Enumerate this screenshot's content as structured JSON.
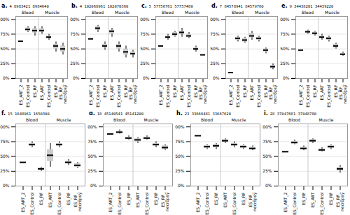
{
  "chart_data": [
    {
      "type": "box",
      "title": "a.",
      "subtitle": "4_8983421_8984640",
      "series": [
        {
          "name": "Blood",
          "categories": [
            "ES_ART_2",
            "ES_Control",
            "ES_RF"
          ],
          "values": [
            [
              63
            ],
            [
              78,
              80,
              82,
              84,
              86,
              88
            ],
            [
              72,
              75,
              78,
              80,
              82,
              84,
              86,
              88
            ]
          ]
        },
        {
          "name": "Muscle",
          "categories": [
            "ES_ART",
            "ES_Control",
            "ES_RF",
            "ES_RF_\nnecropsy"
          ],
          "values": [
            [
              75,
              78,
              80,
              82,
              85,
              88
            ],
            [
              65,
              68,
              70,
              72,
              75
            ],
            [
              45,
              50,
              55,
              58,
              62
            ],
            [
              40,
              45,
              50,
              55,
              60
            ]
          ]
        }
      ],
      "ylim": [
        0,
        105
      ],
      "yticks": [
        {
          "value": 0,
          "label": "0%"
        },
        {
          "value": 25,
          "label": "25%"
        },
        {
          "value": 50,
          "label": "50%"
        },
        {
          "value": 75,
          "label": "75%"
        },
        {
          "value": 100,
          "label": "100%"
        }
      ],
      "grid": true
    },
    {
      "type": "box",
      "title": "b.",
      "subtitle": "4_102068961_102070360",
      "series": [
        {
          "name": "Blood",
          "categories": [
            "ES_ART_2",
            "ES_Control",
            "ES_RF"
          ],
          "values": [
            [
              67
            ],
            [
              78,
              82,
              85,
              88,
              90
            ],
            [
              48,
              52,
              55,
              58,
              62
            ]
          ]
        },
        {
          "name": "Muscle",
          "categories": [
            "ES_ART",
            "ES_Control",
            "ES_RF",
            "ES_RF_\nnecropsy"
          ],
          "values": [
            [
              70,
              75,
              80,
              82,
              85
            ],
            [
              45,
              50,
              55,
              58,
              62
            ],
            [
              35,
              40,
              45,
              50,
              55
            ],
            [
              35,
              40,
              42,
              45,
              48
            ]
          ]
        }
      ],
      "ylim": [
        0,
        105
      ],
      "yticks": [
        {
          "value": 0,
          "label": "0%"
        },
        {
          "value": 25,
          "label": "25%"
        },
        {
          "value": 50,
          "label": "50%"
        },
        {
          "value": 75,
          "label": "75%"
        },
        {
          "value": 100,
          "label": "100%"
        }
      ],
      "grid": true
    },
    {
      "type": "box",
      "title": "c.",
      "subtitle": "5_57756761_57757480",
      "series": [
        {
          "name": "Blood",
          "categories": [
            "ES_ART_2",
            "ES_Control",
            "ES_RF"
          ],
          "values": [
            [
              55
            ],
            [
              65,
              68,
              70,
              72,
              75
            ],
            [
              70,
              72,
              75,
              78,
              80
            ]
          ]
        },
        {
          "name": "Muscle",
          "categories": [
            "ES_ART",
            "ES_Control",
            "ES_RF",
            "ES_RF_\nnecropsy"
          ],
          "values": [
            [
              70,
              75,
              78,
              80,
              85
            ],
            [
              68,
              70,
              72,
              75,
              78
            ],
            [
              45,
              48,
              50,
              52,
              55
            ],
            [
              40
            ]
          ]
        }
      ],
      "ylim": [
        0,
        105
      ],
      "yticks": [
        {
          "value": 0,
          "label": "0%"
        },
        {
          "value": 25,
          "label": "25%"
        },
        {
          "value": 50,
          "label": "50%"
        },
        {
          "value": 75,
          "label": "75%"
        },
        {
          "value": 100,
          "label": "100%"
        }
      ],
      "grid": true
    },
    {
      "type": "box",
      "title": "d.",
      "subtitle": "7_84578941_84579760",
      "series": [
        {
          "name": "Blood",
          "categories": [
            "ES_ART_2",
            "ES_Control",
            "ES_RF"
          ],
          "values": [
            [
              10
            ],
            [
              62,
              65,
              68,
              70,
              72
            ],
            [
              60,
              62,
              65,
              68,
              70
            ]
          ]
        },
        {
          "name": "Muscle",
          "categories": [
            "ES_ART",
            "ES_Control",
            "ES_RF",
            "ES_RF_\nnecropsy"
          ],
          "values": [
            [
              65,
              68,
              70,
              72,
              75,
              78,
              80
            ],
            [
              62,
              65,
              68,
              70,
              72
            ],
            [
              42,
              45,
              48,
              50,
              52
            ],
            [
              15,
              18,
              20,
              22,
              25
            ]
          ]
        }
      ],
      "ylim": [
        0,
        105
      ],
      "yticks": [
        {
          "value": 0,
          "label": "0%"
        },
        {
          "value": 25,
          "label": "25%"
        },
        {
          "value": 50,
          "label": "50%"
        },
        {
          "value": 75,
          "label": "75%"
        },
        {
          "value": 100,
          "label": "100%"
        }
      ],
      "grid": true
    },
    {
      "type": "box",
      "title": "e.",
      "subtitle": "9_34438201_34439220",
      "series": [
        {
          "name": "Blood",
          "categories": [
            "ES_ART_2",
            "ES_Control",
            "ES_RF"
          ],
          "values": [
            [
              48
            ],
            [
              75,
              78,
              80,
              82
            ],
            [
              72,
              75,
              78,
              80
            ]
          ]
        },
        {
          "name": "Muscle",
          "categories": [
            "ES_ART",
            "ES_Control",
            "ES_RF",
            "ES_RF_\nnecropsy"
          ],
          "values": [
            [
              65,
              68,
              70,
              72,
              75
            ],
            [
              62,
              65,
              68,
              70,
              72
            ],
            [
              50,
              52,
              55,
              58,
              60
            ],
            [
              38,
              40,
              42,
              45
            ]
          ]
        }
      ],
      "ylim": [
        0,
        105
      ],
      "yticks": [
        {
          "value": 0,
          "label": "0%"
        },
        {
          "value": 25,
          "label": "25%"
        },
        {
          "value": 50,
          "label": "50%"
        },
        {
          "value": 75,
          "label": "75%"
        },
        {
          "value": 100,
          "label": "100%"
        }
      ],
      "grid": true
    },
    {
      "type": "box",
      "title": "f.",
      "subtitle": "15_1648961_1650300",
      "series": [
        {
          "name": "Blood",
          "categories": [
            "ES_ART_2",
            "ES_Control",
            "ES_RF"
          ],
          "values": [
            [
              40
            ],
            [
              65,
              68,
              70,
              72,
              75
            ],
            [
              25,
              28,
              30,
              32
            ]
          ]
        },
        {
          "name": "Muscle",
          "categories": [
            "ES_ART",
            "ES_Control",
            "ES_RF",
            "ES_RF_\nnecropsy"
          ],
          "values": [
            [
              32,
              38,
              45,
              52,
              58,
              65,
              72
            ],
            [
              65,
              68,
              70,
              72,
              75
            ],
            [
              35,
              38,
              40,
              42,
              45
            ],
            [
              30,
              32,
              35,
              38,
              40
            ]
          ]
        }
      ],
      "ylim": [
        0,
        105
      ],
      "yticks": [
        {
          "value": 0,
          "label": "0%"
        },
        {
          "value": 25,
          "label": "25%"
        },
        {
          "value": 50,
          "label": "50%"
        },
        {
          "value": 75,
          "label": "75%"
        },
        {
          "value": 100,
          "label": "100%"
        }
      ],
      "grid": true
    },
    {
      "type": "box",
      "title": "g.",
      "subtitle": "18_45140541_45141200",
      "series": [
        {
          "name": "Blood",
          "categories": [
            "ES_ART_2",
            "ES_Control",
            "ES_RF"
          ],
          "values": [
            [
              88
            ],
            [
              88,
              90,
              92,
              95
            ],
            [
              78,
              80,
              82,
              85
            ]
          ]
        },
        {
          "name": "Muscle",
          "categories": [
            "ES_ART",
            "ES_Control",
            "ES_RF",
            "ES_RF_\nnecropsy"
          ],
          "values": [
            [
              72,
              75,
              78,
              80,
              82
            ],
            [
              78,
              80,
              82,
              85
            ],
            [
              65,
              68,
              70,
              72,
              75
            ],
            [
              60,
              62,
              65,
              68,
              70
            ]
          ]
        }
      ],
      "ylim": [
        0,
        105
      ],
      "yticks": [
        {
          "value": 0,
          "label": "0%"
        },
        {
          "value": 25,
          "label": "25%"
        },
        {
          "value": 50,
          "label": "50%"
        },
        {
          "value": 75,
          "label": "75%"
        },
        {
          "value": 100,
          "label": "100%"
        }
      ],
      "grid": true
    },
    {
      "type": "box",
      "title": "h.",
      "subtitle": "23_33666481_33667620",
      "series": [
        {
          "name": "Blood",
          "categories": [
            "ES_ART_2",
            "ES_Control",
            "ES_RF"
          ],
          "values": [
            [
              85
            ],
            [
              62,
              65,
              68,
              70
            ],
            [
              62,
              65,
              68,
              70,
              72
            ]
          ]
        },
        {
          "name": "Muscle",
          "categories": [
            "ES_ART",
            "ES_Control",
            "ES_RF",
            "ES_RF_\nnecropsy"
          ],
          "values": [
            [
              72,
              75,
              78,
              80
            ],
            [
              65,
              68,
              70,
              72,
              75
            ],
            [
              62,
              65,
              68,
              70
            ],
            [
              60,
              62,
              65,
              68
            ]
          ]
        }
      ],
      "ylim": [
        0,
        105
      ],
      "yticks": [
        {
          "value": 0,
          "label": "0%"
        },
        {
          "value": 25,
          "label": "25%"
        },
        {
          "value": 50,
          "label": "50%"
        },
        {
          "value": 75,
          "label": "75%"
        },
        {
          "value": 100,
          "label": "100%"
        }
      ],
      "grid": true
    },
    {
      "type": "box",
      "title": "i.",
      "subtitle": "28_37047681_37048780",
      "series": [
        {
          "name": "Blood",
          "categories": [
            "ES_ART_2",
            "ES_Control",
            "ES_RF"
          ],
          "values": [
            [
              58
            ],
            [
              70,
              72,
              75,
              78
            ],
            [
              60,
              62,
              65,
              68
            ]
          ]
        },
        {
          "name": "Muscle",
          "categories": [
            "ES_ART",
            "ES_Control",
            "ES_RF",
            "ES_RF_\nnecropsy"
          ],
          "values": [
            [
              72,
              75,
              78,
              80
            ],
            [
              58,
              60,
              62,
              65
            ],
            [
              62,
              65,
              68,
              70
            ],
            [
              22,
              25,
              28,
              30,
              32,
              35
            ]
          ]
        }
      ],
      "ylim": [
        0,
        105
      ],
      "yticks": [
        {
          "value": 0,
          "label": "0%"
        },
        {
          "value": 25,
          "label": "25%"
        },
        {
          "value": 50,
          "label": "50%"
        },
        {
          "value": 75,
          "label": "75%"
        },
        {
          "value": 100,
          "label": "100%"
        }
      ],
      "grid": true
    }
  ]
}
